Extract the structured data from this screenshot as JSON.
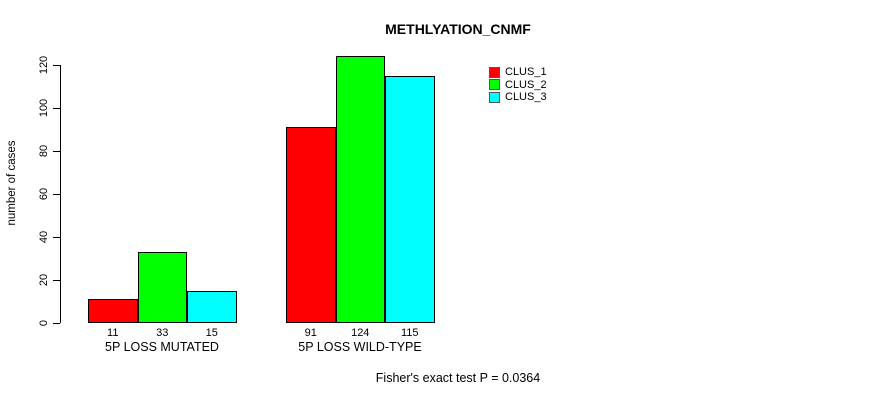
{
  "title": "METHLYATION_CNMF",
  "footer": "Fisher's exact test P = 0.0364",
  "legend": {
    "items": [
      {
        "label": "CLUS_1",
        "color": "#ff0000"
      },
      {
        "label": "CLUS_2",
        "color": "#00ff00"
      },
      {
        "label": "CLUS_3",
        "color": "#00ffff"
      }
    ]
  },
  "chart_data": {
    "type": "bar",
    "title": "METHLYATION_CNMF",
    "ylabel": "number of cases",
    "xlabel": "",
    "categories": [
      "5P LOSS MUTATED",
      "5P LOSS WILD-TYPE"
    ],
    "series": [
      {
        "name": "CLUS_1",
        "color": "#ff0000",
        "values": [
          11,
          91
        ]
      },
      {
        "name": "CLUS_2",
        "color": "#00ff00",
        "values": [
          33,
          124
        ]
      },
      {
        "name": "CLUS_3",
        "color": "#00ffff",
        "values": [
          15,
          115
        ]
      }
    ],
    "bar_value_labels": [
      [
        "11",
        "33",
        "15"
      ],
      [
        "91",
        "124",
        "115"
      ]
    ],
    "yticks": [
      0,
      20,
      40,
      60,
      80,
      100,
      120
    ],
    "ylim": [
      0,
      124
    ],
    "grid": false,
    "legend_position": "top-right",
    "annotation": "Fisher's exact test P = 0.0364"
  }
}
